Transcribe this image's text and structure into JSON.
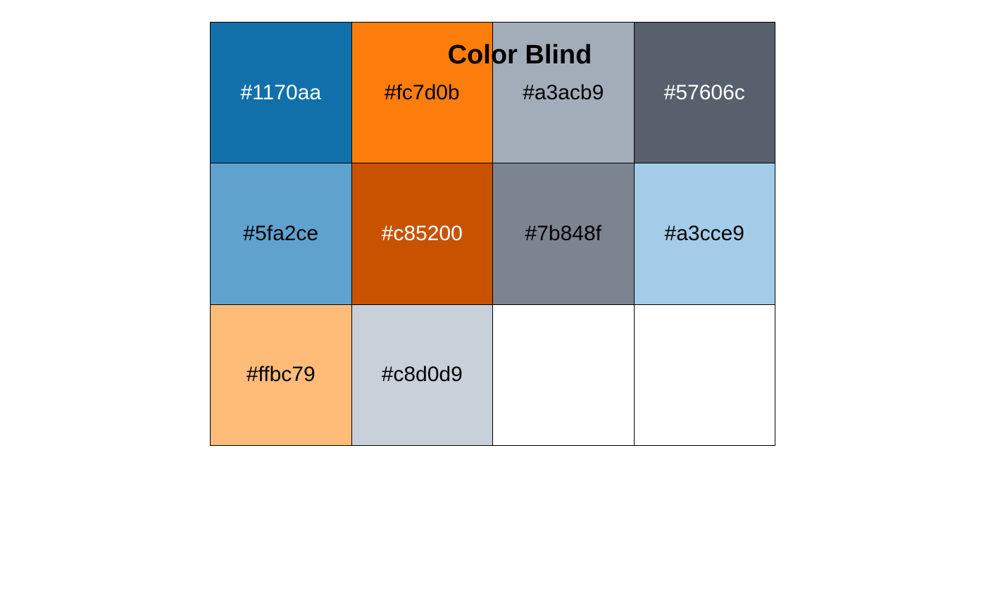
{
  "title": "Color Blind",
  "swatches": [
    {
      "hex": "#1170aa",
      "label": "#1170aa",
      "text_color": "#ffffff"
    },
    {
      "hex": "#fc7d0b",
      "label": "#fc7d0b",
      "text_color": "#000000"
    },
    {
      "hex": "#a3acb9",
      "label": "#a3acb9",
      "text_color": "#000000"
    },
    {
      "hex": "#57606c",
      "label": "#57606c",
      "text_color": "#ffffff"
    },
    {
      "hex": "#5fa2ce",
      "label": "#5fa2ce",
      "text_color": "#000000"
    },
    {
      "hex": "#c85200",
      "label": "#c85200",
      "text_color": "#ffffff"
    },
    {
      "hex": "#7b848f",
      "label": "#7b848f",
      "text_color": "#000000"
    },
    {
      "hex": "#a3cce9",
      "label": "#a3cce9",
      "text_color": "#000000"
    },
    {
      "hex": "#ffbc79",
      "label": "#ffbc79",
      "text_color": "#000000"
    },
    {
      "hex": "#c8d0d9",
      "label": "#c8d0d9",
      "text_color": "#000000"
    },
    {
      "hex": "#ffffff",
      "label": "",
      "text_color": "#000000"
    },
    {
      "hex": "#ffffff",
      "label": "",
      "text_color": "#000000"
    }
  ]
}
